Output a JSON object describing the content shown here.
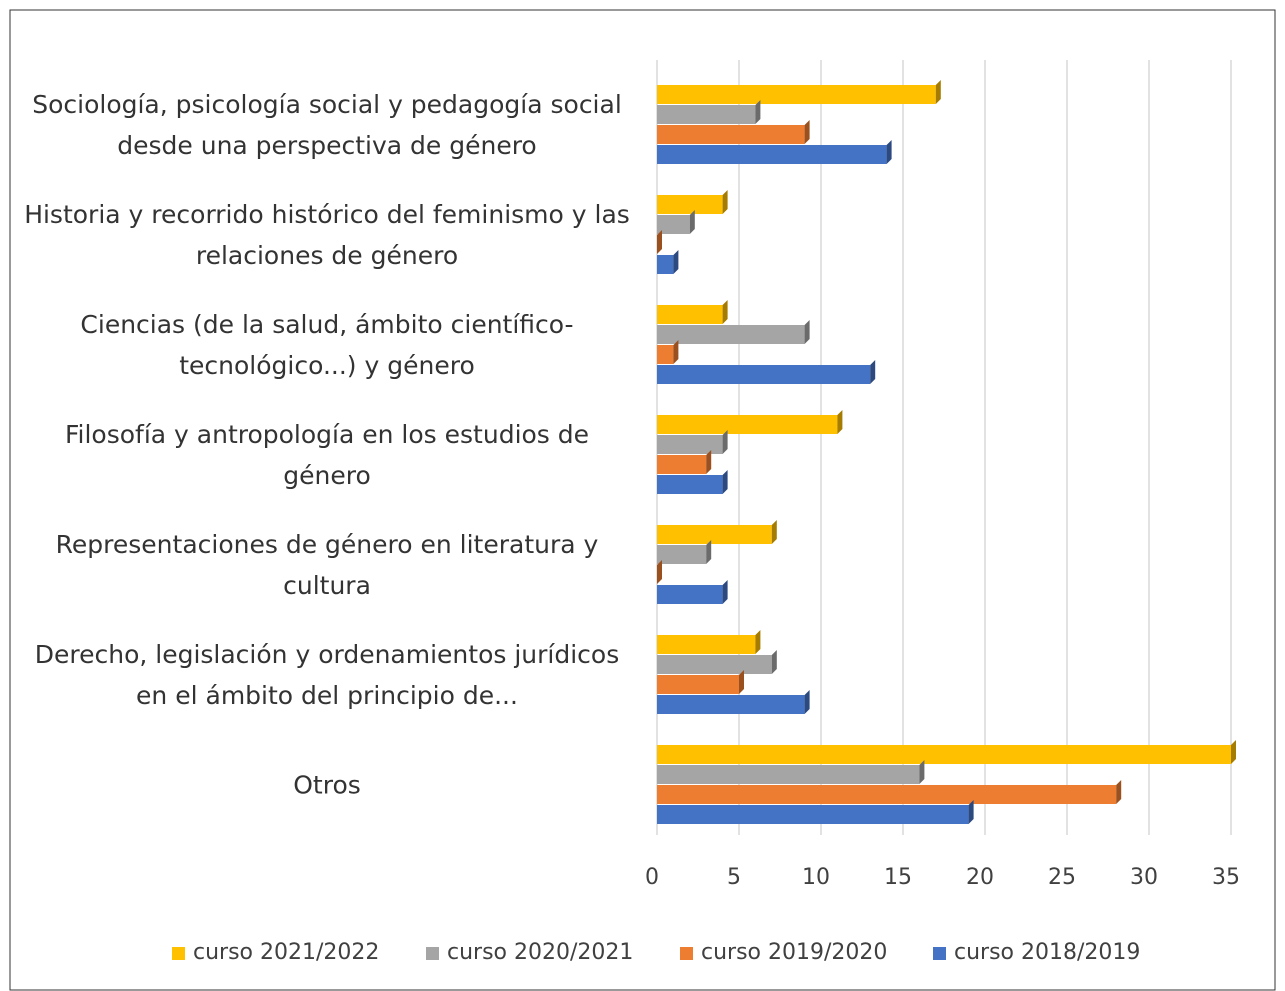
{
  "chart_data": {
    "type": "bar",
    "orientation": "horizontal",
    "categories": [
      "Sociología, psicología social y pedagogía social desde una perspectiva de género",
      "Historia y recorrido histórico del feminismo y las relaciones de género",
      "Ciencias (de la salud, ámbito científico-tecnológico...) y género",
      "Filosofía y antropología en los estudios de género",
      "Representaciones de género en literatura y cultura",
      "Derecho, legislación y ordenamientos jurídicos en el ámbito del principio de...",
      "Otros"
    ],
    "series": [
      {
        "name": "curso 2021/2022",
        "color": "#ffc000",
        "values": [
          17,
          4,
          4,
          11,
          7,
          6,
          35
        ]
      },
      {
        "name": "curso 2020/2021",
        "color": "#a5a5a5",
        "values": [
          6,
          2,
          9,
          4,
          3,
          7,
          16
        ]
      },
      {
        "name": "curso 2019/2020",
        "color": "#ed7d31",
        "values": [
          9,
          0,
          1,
          3,
          0,
          5,
          28
        ]
      },
      {
        "name": "curso 2018/2019",
        "color": "#4472c4",
        "values": [
          14,
          1,
          13,
          4,
          4,
          9,
          19
        ]
      }
    ],
    "xlim": [
      0,
      35
    ],
    "xticks": [
      0,
      5,
      10,
      15,
      20,
      25,
      30,
      35
    ],
    "grid": true,
    "legend": "bottom"
  }
}
